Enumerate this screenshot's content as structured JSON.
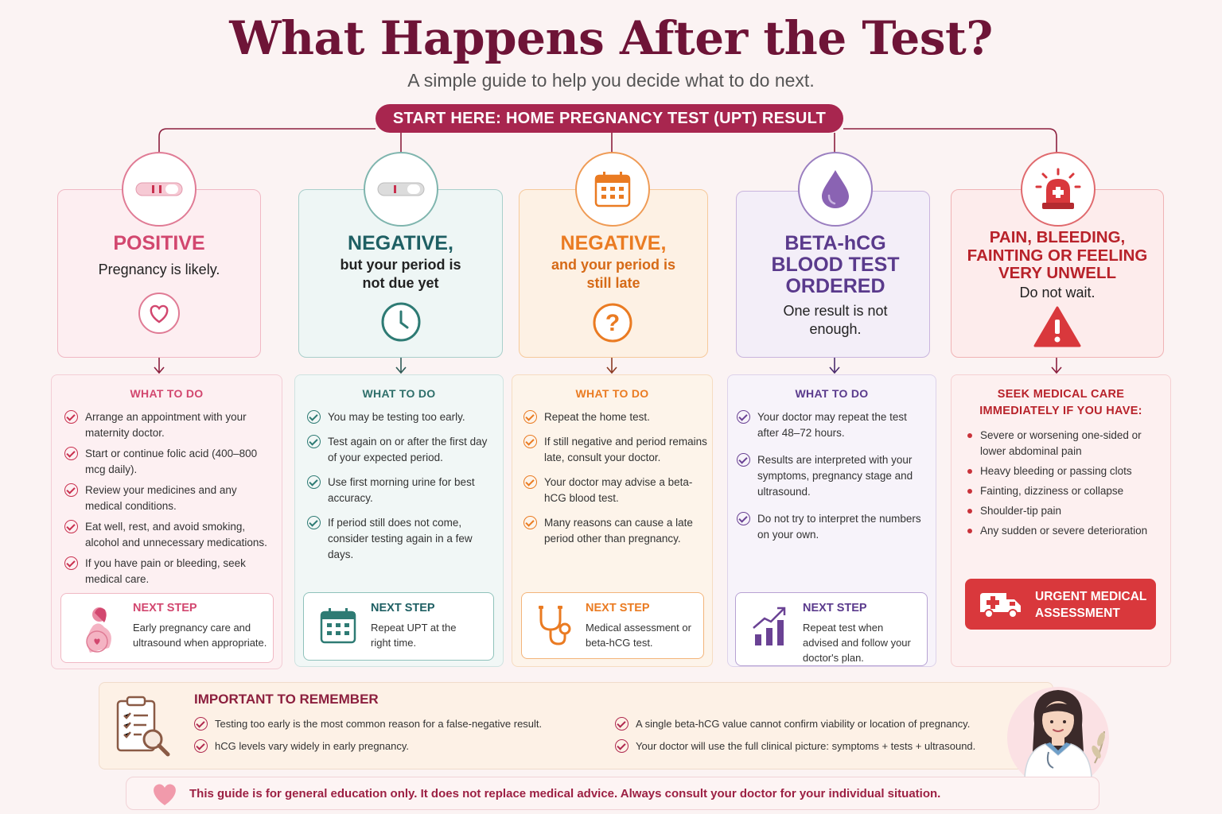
{
  "header": {
    "title": "What Happens After the Test?",
    "subtitle": "A simple guide to help you decide what to do next.",
    "start": "START HERE: HOME PREGNANCY TEST (UPT) RESULT"
  },
  "colors": {
    "positive": "#d2476f",
    "negative_early": "#2e7b74",
    "negative_late": "#ea7b22",
    "beta": "#6a4294",
    "urgent": "#c9323a",
    "accent": "#a8264f"
  },
  "columns": [
    {
      "icon": "test-strip-icon",
      "title": "POSITIVE",
      "sub": "Pregnancy is likely.",
      "secondary_icon": "heart-icon",
      "todo_title": "WHAT TO DO",
      "items": [
        "Arrange an appointment with your maternity doctor.",
        "Start or continue folic acid (400–800 mcg daily).",
        "Review your medicines and any medical conditions.",
        "Eat well, rest, and avoid smoking, alcohol and unnecessary medications.",
        "If you have pain or bleeding, seek medical care."
      ],
      "next_title": "NEXT STEP",
      "next_text": "Early pregnancy care and ultrasound when appropriate.",
      "next_icon": "pregnant-woman-icon"
    },
    {
      "icon": "test-strip-icon",
      "title": "NEGATIVE,",
      "sub": "but your period is not due yet",
      "secondary_icon": "clock-icon",
      "todo_title": "WHAT TO DO",
      "items": [
        "You may be testing too early.",
        "Test again on or after the first day of your expected period.",
        "Use first morning urine for best accuracy.",
        "If period still does not come, consider testing again in a few days."
      ],
      "next_title": "NEXT STEP",
      "next_text": "Repeat UPT at the right time.",
      "next_icon": "calendar-icon"
    },
    {
      "icon": "calendar-icon",
      "title": "NEGATIVE,",
      "sub": "and your period is still late",
      "secondary_icon": "question-icon",
      "todo_title": "WHAT TO DO",
      "items": [
        "Repeat the home test.",
        "If still negative and period remains late, consult your doctor.",
        "Your doctor may advise a beta-hCG blood test.",
        "Many reasons can cause a late period other than pregnancy."
      ],
      "next_title": "NEXT STEP",
      "next_text": "Medical assessment or beta-hCG test.",
      "next_icon": "stethoscope-icon"
    },
    {
      "icon": "blood-drop-icon",
      "title": "BETA-hCG BLOOD TEST ORDERED",
      "sub": "One result is not enough.",
      "todo_title": "WHAT TO DO",
      "items": [
        "Your doctor may repeat the test after 48–72 hours.",
        "Results are interpreted with your symptoms, pregnancy stage and ultrasound.",
        "Do not try to interpret the numbers on your own."
      ],
      "next_title": "NEXT STEP",
      "next_text": "Repeat test when advised and follow your doctor's plan.",
      "next_icon": "trend-chart-icon"
    },
    {
      "icon": "siren-icon",
      "title": "PAIN, BLEEDING, FAINTING OR FEELING VERY UNWELL",
      "sub": "Do not wait.",
      "secondary_icon": "warning-icon",
      "todo_title": "SEEK MEDICAL CARE IMMEDIATELY IF YOU HAVE:",
      "items": [
        "Severe or worsening one-sided or lower abdominal pain",
        "Heavy bleeding or passing clots",
        "Fainting, dizziness or collapse",
        "Shoulder-tip pain",
        "Any sudden or severe deterioration"
      ],
      "urgent_label": "URGENT MEDICAL ASSESSMENT",
      "urgent_icon": "ambulance-icon"
    }
  ],
  "remember": {
    "title": "IMPORTANT TO REMEMBER",
    "items": [
      "Testing too early is the most common reason for a false-negative result.",
      "hCG levels vary widely in early pregnancy.",
      "A single beta-hCG value cannot confirm viability or location of pregnancy.",
      "Your doctor will use the full clinical picture: symptoms + tests + ultrasound."
    ],
    "icon": "clipboard-search-icon",
    "doctor_icon": "doctor-icon"
  },
  "disclaimer": "This guide is for general education only. It does not replace medical advice. Always consult your doctor for your individual situation."
}
